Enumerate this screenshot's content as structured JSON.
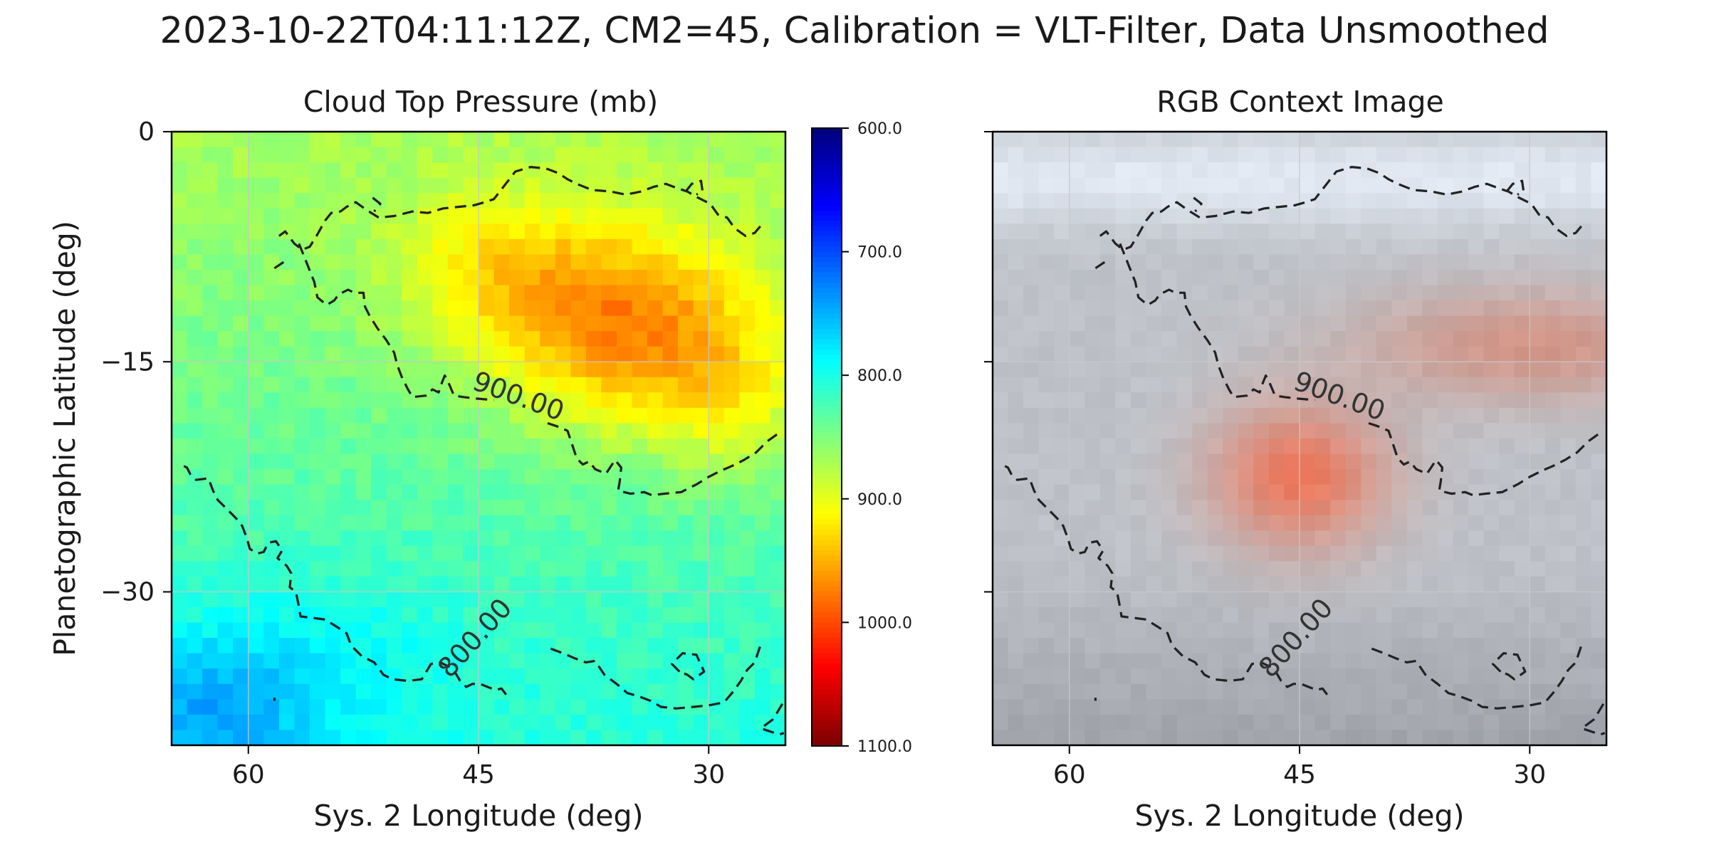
{
  "figure": {
    "suptitle": "2023-10-22T04:11:12Z, CM2=45, Calibration = VLT-Filter, Data Unsmoothed"
  },
  "chart_data": [
    {
      "type": "heatmap",
      "title": "Cloud Top Pressure (mb)",
      "xlabel": "Sys. 2 Longitude (deg)",
      "ylabel": "Planetographic Latitude (deg)",
      "xlim": [
        65,
        25
      ],
      "ylim": [
        -40,
        0
      ],
      "xticks": [
        60,
        45,
        30
      ],
      "xtick_labels": [
        "60",
        "45",
        "30"
      ],
      "yticks": [
        0,
        -15,
        -30
      ],
      "ytick_labels": [
        "0",
        "−15",
        "−30"
      ],
      "grid": true,
      "colormap": "jet",
      "colorbar": {
        "min": 600,
        "max": 1100,
        "reversed": true,
        "ticks": [
          600,
          700,
          800,
          900,
          1000,
          1100
        ],
        "tick_labels": [
          "600.0",
          "700.0",
          "800.0",
          "900.0",
          "1000.0",
          "1100.0"
        ]
      },
      "value_range_approx": [
        760,
        990
      ],
      "contours": [
        {
          "level": 900,
          "label": "900.00",
          "style": "dashed"
        },
        {
          "level": 800,
          "label": "800.00",
          "style": "dashed"
        }
      ]
    },
    {
      "type": "heatmap",
      "title": "RGB Context Image",
      "xlabel": "Sys. 2 Longitude (deg)",
      "xlim": [
        65,
        25
      ],
      "ylim": [
        -40,
        0
      ],
      "xticks": [
        60,
        45,
        30
      ],
      "xtick_labels": [
        "60",
        "45",
        "30"
      ],
      "yticks": [
        0,
        -15,
        -30
      ],
      "ytick_labels": [
        "",
        "",
        ""
      ],
      "grid": true,
      "contours": [
        {
          "level": 900,
          "label": "900.00",
          "style": "dashed"
        },
        {
          "level": 800,
          "label": "800.00",
          "style": "dashed"
        }
      ]
    }
  ],
  "colors": {
    "contour": "#222222",
    "axes": "#000000",
    "grid": "#c8c8c8"
  }
}
